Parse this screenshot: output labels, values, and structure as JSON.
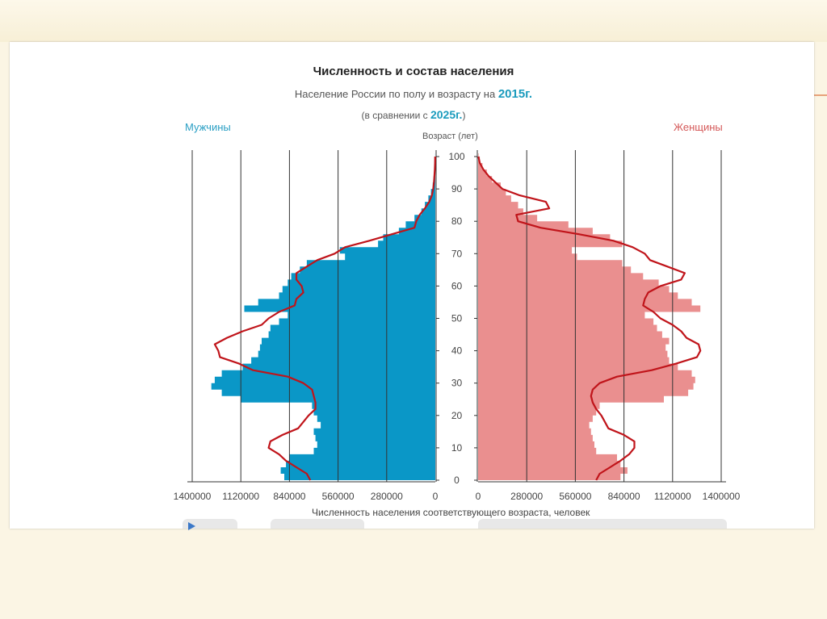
{
  "chart_data": {
    "type": "population-pyramid",
    "title": "Численность и состав населения",
    "subtitle_prefix": "Население России по полу и возрасту на",
    "year_main": "2015г.",
    "subtitle2_prefix": "(в сравнении с",
    "year_compare": "2025г.",
    "subtitle2_suffix": ")",
    "left_label": "Мужчины",
    "right_label": "Женщины",
    "ylabel": "Возраст (лет)",
    "xlabel": "Численность населения соответствующего возраста, человек",
    "age_ticks": [
      0,
      10,
      20,
      30,
      40,
      50,
      60,
      70,
      80,
      90,
      100
    ],
    "x_ticks_left": [
      "1400000",
      "1120000",
      "840000",
      "560000",
      "280000",
      "0"
    ],
    "x_ticks_right": [
      "0",
      "280000",
      "560000",
      "840000",
      "1120000",
      "1400000"
    ],
    "x_tick_values": [
      0,
      280000,
      560000,
      840000,
      1120000,
      1400000
    ],
    "ylim": [
      0,
      100
    ],
    "xlim": [
      0,
      1400000
    ],
    "colors": {
      "men": "#0a97c7",
      "women": "#ea8f8f",
      "outline_2025": "#c0141a"
    },
    "men_2015": [
      [
        0,
        870000
      ],
      [
        2,
        890000
      ],
      [
        4,
        860000
      ],
      [
        6,
        840000
      ],
      [
        8,
        700000
      ],
      [
        10,
        680000
      ],
      [
        12,
        690000
      ],
      [
        14,
        700000
      ],
      [
        16,
        660000
      ],
      [
        18,
        680000
      ],
      [
        20,
        700000
      ],
      [
        22,
        710000
      ],
      [
        24,
        1120000
      ],
      [
        26,
        1230000
      ],
      [
        28,
        1290000
      ],
      [
        30,
        1270000
      ],
      [
        32,
        1230000
      ],
      [
        34,
        1110000
      ],
      [
        36,
        1060000
      ],
      [
        38,
        1020000
      ],
      [
        40,
        1010000
      ],
      [
        42,
        1000000
      ],
      [
        44,
        960000
      ],
      [
        46,
        950000
      ],
      [
        48,
        900000
      ],
      [
        50,
        850000
      ],
      [
        52,
        1100000
      ],
      [
        54,
        1020000
      ],
      [
        56,
        900000
      ],
      [
        58,
        880000
      ],
      [
        60,
        850000
      ],
      [
        62,
        830000
      ],
      [
        64,
        780000
      ],
      [
        66,
        740000
      ],
      [
        68,
        520000
      ],
      [
        70,
        550000
      ],
      [
        72,
        330000
      ],
      [
        74,
        300000
      ],
      [
        76,
        210000
      ],
      [
        78,
        170000
      ],
      [
        80,
        120000
      ],
      [
        82,
        80000
      ],
      [
        84,
        60000
      ],
      [
        86,
        40000
      ],
      [
        88,
        25000
      ],
      [
        90,
        15000
      ],
      [
        92,
        10000
      ],
      [
        94,
        6000
      ],
      [
        96,
        3000
      ],
      [
        98,
        1000
      ],
      [
        100,
        500
      ]
    ],
    "men_2025": [
      [
        0,
        720000
      ],
      [
        2,
        740000
      ],
      [
        4,
        800000
      ],
      [
        6,
        860000
      ],
      [
        8,
        900000
      ],
      [
        10,
        960000
      ],
      [
        12,
        950000
      ],
      [
        14,
        880000
      ],
      [
        16,
        790000
      ],
      [
        18,
        760000
      ],
      [
        20,
        730000
      ],
      [
        22,
        690000
      ],
      [
        24,
        690000
      ],
      [
        26,
        700000
      ],
      [
        28,
        710000
      ],
      [
        30,
        760000
      ],
      [
        32,
        850000
      ],
      [
        34,
        1050000
      ],
      [
        36,
        1130000
      ],
      [
        38,
        1240000
      ],
      [
        40,
        1250000
      ],
      [
        42,
        1270000
      ],
      [
        44,
        1200000
      ],
      [
        46,
        1110000
      ],
      [
        48,
        1000000
      ],
      [
        50,
        960000
      ],
      [
        52,
        900000
      ],
      [
        54,
        810000
      ],
      [
        56,
        800000
      ],
      [
        58,
        760000
      ],
      [
        60,
        770000
      ],
      [
        62,
        800000
      ],
      [
        64,
        800000
      ],
      [
        66,
        740000
      ],
      [
        68,
        680000
      ],
      [
        70,
        580000
      ],
      [
        72,
        520000
      ],
      [
        74,
        380000
      ],
      [
        76,
        250000
      ],
      [
        78,
        120000
      ],
      [
        80,
        110000
      ],
      [
        82,
        90000
      ],
      [
        84,
        60000
      ],
      [
        86,
        35000
      ],
      [
        88,
        20000
      ],
      [
        90,
        12000
      ],
      [
        92,
        8000
      ],
      [
        94,
        5000
      ],
      [
        96,
        3000
      ],
      [
        98,
        1500
      ],
      [
        100,
        800
      ]
    ],
    "women_2015": [
      [
        0,
        820000
      ],
      [
        2,
        860000
      ],
      [
        4,
        820000
      ],
      [
        6,
        800000
      ],
      [
        8,
        680000
      ],
      [
        10,
        670000
      ],
      [
        12,
        660000
      ],
      [
        14,
        650000
      ],
      [
        16,
        640000
      ],
      [
        18,
        660000
      ],
      [
        20,
        680000
      ],
      [
        22,
        700000
      ],
      [
        24,
        1070000
      ],
      [
        26,
        1210000
      ],
      [
        28,
        1240000
      ],
      [
        30,
        1250000
      ],
      [
        32,
        1230000
      ],
      [
        34,
        1150000
      ],
      [
        36,
        1100000
      ],
      [
        38,
        1090000
      ],
      [
        40,
        1080000
      ],
      [
        42,
        1100000
      ],
      [
        44,
        1060000
      ],
      [
        46,
        1030000
      ],
      [
        48,
        1010000
      ],
      [
        50,
        960000
      ],
      [
        52,
        1280000
      ],
      [
        54,
        1230000
      ],
      [
        56,
        1150000
      ],
      [
        58,
        1100000
      ],
      [
        60,
        1040000
      ],
      [
        62,
        950000
      ],
      [
        64,
        880000
      ],
      [
        66,
        830000
      ],
      [
        68,
        570000
      ],
      [
        70,
        540000
      ],
      [
        72,
        830000
      ],
      [
        74,
        760000
      ],
      [
        76,
        660000
      ],
      [
        78,
        520000
      ],
      [
        80,
        340000
      ],
      [
        82,
        260000
      ],
      [
        84,
        230000
      ],
      [
        86,
        190000
      ],
      [
        88,
        160000
      ],
      [
        90,
        130000
      ],
      [
        92,
        80000
      ],
      [
        94,
        50000
      ],
      [
        96,
        25000
      ],
      [
        98,
        10000
      ],
      [
        100,
        3000
      ]
    ],
    "women_2025": [
      [
        0,
        680000
      ],
      [
        2,
        700000
      ],
      [
        4,
        760000
      ],
      [
        6,
        820000
      ],
      [
        8,
        870000
      ],
      [
        10,
        900000
      ],
      [
        12,
        900000
      ],
      [
        14,
        840000
      ],
      [
        16,
        750000
      ],
      [
        18,
        730000
      ],
      [
        20,
        710000
      ],
      [
        22,
        680000
      ],
      [
        24,
        660000
      ],
      [
        26,
        650000
      ],
      [
        28,
        660000
      ],
      [
        30,
        700000
      ],
      [
        32,
        800000
      ],
      [
        34,
        1000000
      ],
      [
        36,
        1140000
      ],
      [
        38,
        1260000
      ],
      [
        40,
        1280000
      ],
      [
        42,
        1270000
      ],
      [
        44,
        1200000
      ],
      [
        46,
        1170000
      ],
      [
        48,
        1120000
      ],
      [
        50,
        1050000
      ],
      [
        52,
        1010000
      ],
      [
        54,
        950000
      ],
      [
        56,
        960000
      ],
      [
        58,
        980000
      ],
      [
        60,
        1050000
      ],
      [
        62,
        1170000
      ],
      [
        64,
        1190000
      ],
      [
        66,
        1090000
      ],
      [
        68,
        990000
      ],
      [
        70,
        960000
      ],
      [
        72,
        890000
      ],
      [
        74,
        780000
      ],
      [
        76,
        580000
      ],
      [
        78,
        360000
      ],
      [
        80,
        230000
      ],
      [
        82,
        220000
      ],
      [
        84,
        410000
      ],
      [
        86,
        390000
      ],
      [
        88,
        240000
      ],
      [
        90,
        140000
      ],
      [
        92,
        100000
      ],
      [
        94,
        60000
      ],
      [
        96,
        30000
      ],
      [
        98,
        10000
      ],
      [
        100,
        2000
      ]
    ]
  }
}
